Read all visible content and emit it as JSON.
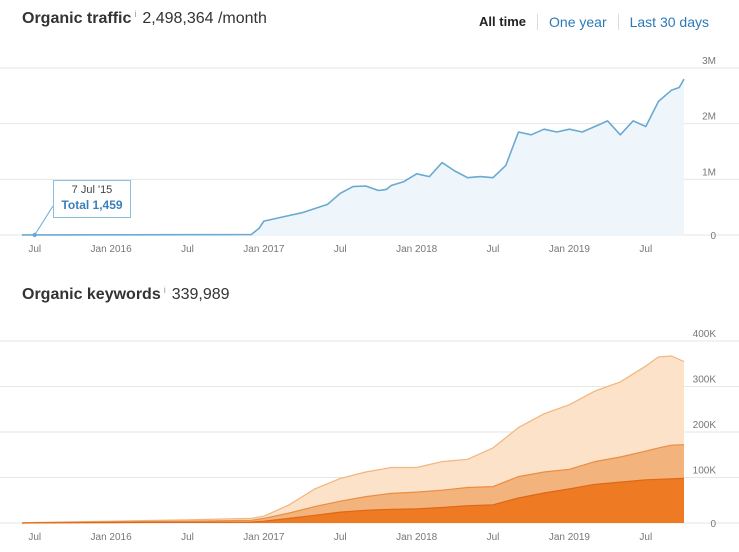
{
  "traffic_header": {
    "title": "Organic traffic",
    "info": "i",
    "value": "2,498,364 /month"
  },
  "keywords_header": {
    "title": "Organic keywords",
    "info": "i",
    "value": "339,989"
  },
  "range_tabs": {
    "all_time": "All time",
    "one_year": "One year",
    "last_30_days": "Last 30 days"
  },
  "tooltip": {
    "date": "7 Jul '15",
    "total": "Total 1,459"
  },
  "colors": {
    "traffic_line": "#6aa9d2",
    "traffic_fill": "#eef6fc",
    "kw_light": "#fbe2c8",
    "kw_light_line": "#f2b57d",
    "kw_mid": "#f3b37c",
    "kw_mid_line": "#eb8d43",
    "kw_dark": "#ee7a23",
    "kw_dark_line": "#de6815",
    "grid": "#e6e6e6",
    "axis_text": "#777777"
  },
  "chart_data": [
    {
      "type": "line",
      "title": "Organic traffic",
      "x_ticks": [
        "Jul",
        "Jan 2016",
        "Jul",
        "Jan 2017",
        "Jul",
        "Jan 2018",
        "Jul",
        "Jan 2019",
        "Jul"
      ],
      "x_tick_dates": [
        "2015-07",
        "2016-01",
        "2016-07",
        "2017-01",
        "2017-07",
        "2018-01",
        "2018-07",
        "2019-01",
        "2019-07"
      ],
      "y_ticks": [
        "3M",
        "2M",
        "1M",
        "0"
      ],
      "y_tick_values": [
        3000000,
        2000000,
        1000000,
        0
      ],
      "ylim": [
        0,
        3000000
      ],
      "xlim": [
        "2015-06",
        "2019-10"
      ],
      "grid": true,
      "series": [
        {
          "x": [
            "2015-06",
            "2015-07",
            "2016-01",
            "2016-07",
            "2016-12",
            "2016-12-20",
            "2017-01",
            "2017-03",
            "2017-04",
            "2017-06",
            "2017-07",
            "2017-08",
            "2017-09",
            "2017-10",
            "2017-10-20",
            "2017-11",
            "2017-12",
            "2018-01",
            "2018-02",
            "2018-03",
            "2018-04",
            "2018-05",
            "2018-06",
            "2018-07",
            "2018-08",
            "2018-09",
            "2018-10",
            "2018-11",
            "2018-12",
            "2019-01",
            "2019-02",
            "2019-03",
            "2019-04",
            "2019-05",
            "2019-06",
            "2019-07",
            "2019-08",
            "2019-09",
            "2019-09-20",
            "2019-10"
          ],
          "values": [
            1459,
            1459,
            3000,
            5000,
            8000,
            120000,
            250000,
            350000,
            400000,
            550000,
            750000,
            870000,
            880000,
            800000,
            820000,
            890000,
            960000,
            1100000,
            1050000,
            1300000,
            1150000,
            1030000,
            1050000,
            1030000,
            1250000,
            1850000,
            1800000,
            1900000,
            1850000,
            1900000,
            1850000,
            1950000,
            2050000,
            1800000,
            2050000,
            1950000,
            2400000,
            2600000,
            2650000,
            2800000
          ]
        }
      ]
    },
    {
      "type": "area",
      "title": "Organic keywords",
      "x_ticks": [
        "Jul",
        "Jan 2016",
        "Jul",
        "Jan 2017",
        "Jul",
        "Jan 2018",
        "Jul",
        "Jan 2019",
        "Jul"
      ],
      "y_ticks": [
        "400K",
        "300K",
        "200K",
        "100K",
        "0"
      ],
      "y_tick_values": [
        400000,
        300000,
        200000,
        100000,
        0
      ],
      "ylim": [
        0,
        400000
      ],
      "xlim": [
        "2015-06",
        "2019-10"
      ],
      "grid": true,
      "x": [
        "2015-06",
        "2015-07",
        "2016-01",
        "2016-07",
        "2016-12",
        "2017-01",
        "2017-03",
        "2017-05",
        "2017-07",
        "2017-09",
        "2017-11",
        "2018-01",
        "2018-03",
        "2018-05",
        "2018-07",
        "2018-09",
        "2018-11",
        "2019-01",
        "2019-03",
        "2019-05",
        "2019-07",
        "2019-08",
        "2019-09",
        "2019-10"
      ],
      "series": [
        {
          "values": [
            0,
            200,
            800,
            1500,
            2000,
            4000,
            10000,
            17000,
            24000,
            28000,
            30000,
            31000,
            34000,
            38000,
            40000,
            55000,
            66000,
            75000,
            85000,
            90000,
            95000,
            96000,
            97000,
            98000
          ]
        },
        {
          "values": [
            0,
            600,
            2500,
            4000,
            6000,
            10000,
            22000,
            36000,
            48000,
            58000,
            65000,
            68000,
            72000,
            78000,
            80000,
            102000,
            112000,
            118000,
            135000,
            145000,
            158000,
            165000,
            171000,
            172000
          ]
        },
        {
          "values": [
            0,
            1000,
            4000,
            7000,
            10000,
            15000,
            40000,
            75000,
            98000,
            112000,
            122000,
            122000,
            135000,
            140000,
            165000,
            210000,
            240000,
            260000,
            290000,
            310000,
            345000,
            365000,
            367000,
            355000
          ]
        }
      ]
    }
  ]
}
